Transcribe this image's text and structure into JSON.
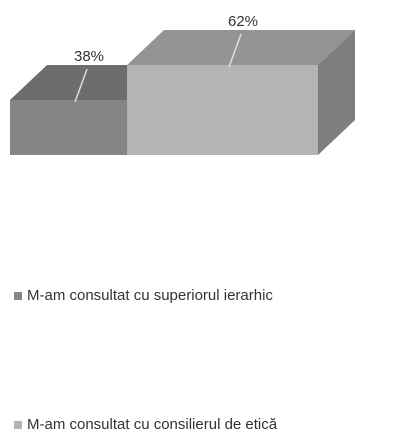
{
  "chart_data": {
    "type": "pie",
    "categories": [
      "M-am consultat cu superiorul ierarhic",
      "M-am consultat cu consilierul de etică"
    ],
    "values": [
      38,
      62
    ],
    "value_labels": [
      "38%",
      "62%"
    ],
    "colors": [
      "#858585",
      "#b4b4b4"
    ],
    "legend": "bottom"
  }
}
